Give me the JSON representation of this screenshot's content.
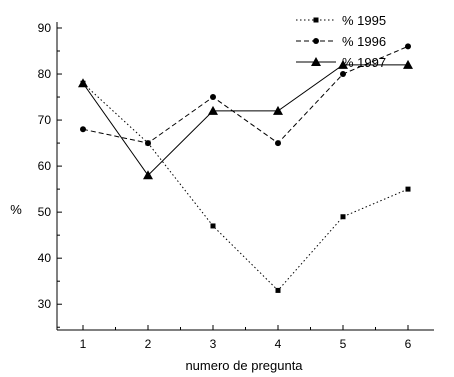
{
  "chart_data": {
    "type": "line",
    "title": "",
    "xlabel": "numero de pregunta",
    "ylabel": "%",
    "x": [
      1,
      2,
      3,
      4,
      5,
      6
    ],
    "xlim": [
      0.6,
      6.4
    ],
    "ylim": [
      24.4,
      91.3
    ],
    "xticks": [
      1,
      2,
      3,
      4,
      5,
      6
    ],
    "yticks": [
      30,
      40,
      50,
      60,
      70,
      80,
      90
    ],
    "grid": false,
    "legend_position": "top-right",
    "series": [
      {
        "name": "% 1995",
        "values": [
          78,
          65,
          47,
          33,
          49,
          55
        ],
        "line_style": "dotted",
        "marker": "square"
      },
      {
        "name": "% 1996",
        "values": [
          68,
          65,
          75,
          65,
          80,
          86
        ],
        "line_style": "dashed",
        "marker": "circle"
      },
      {
        "name": "% 1997",
        "values": [
          78,
          58,
          72,
          72,
          82,
          82
        ],
        "line_style": "solid",
        "marker": "triangle"
      }
    ]
  }
}
